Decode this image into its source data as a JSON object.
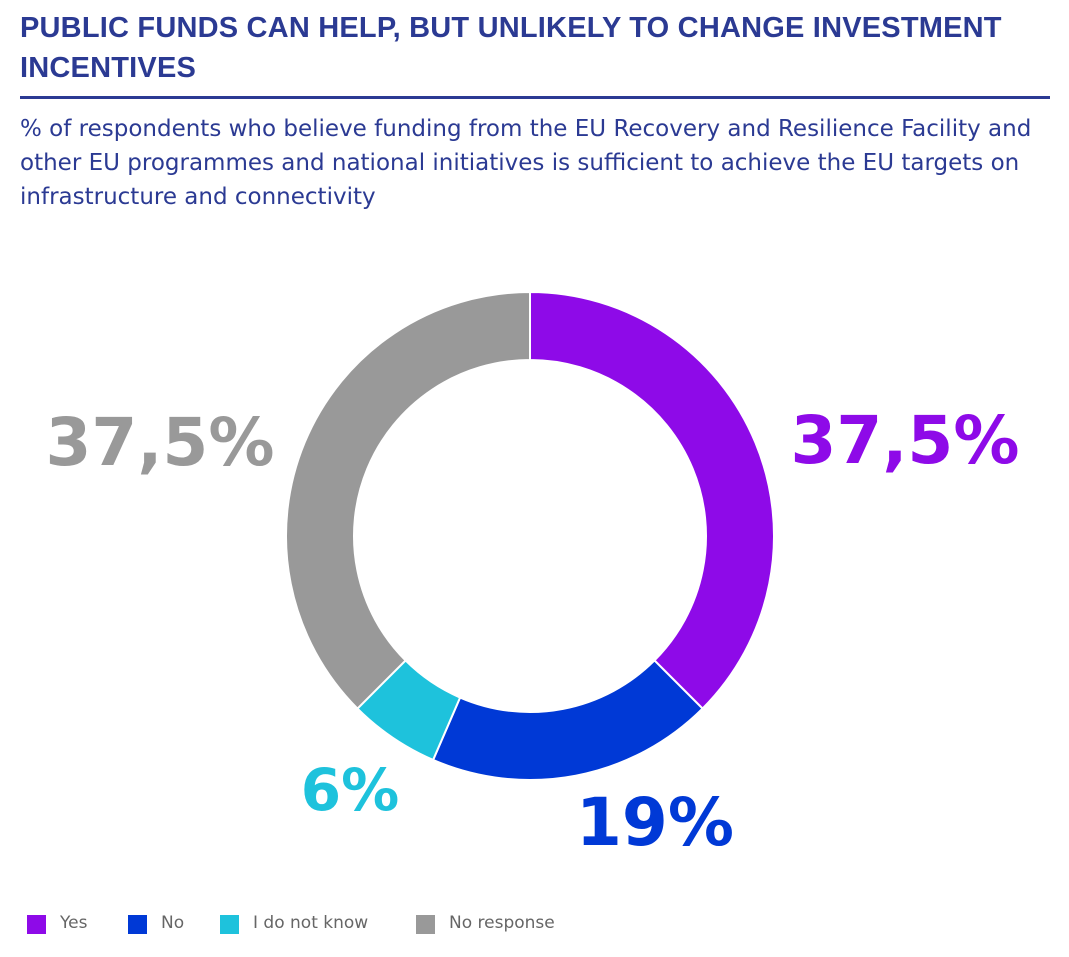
{
  "header": {
    "title": "PUBLIC FUNDS CAN HELP, BUT UNLIKELY TO CHANGE INVESTMENT INCENTIVES",
    "subtitle": "% of respondents who believe funding from the EU Recovery and Resilience Facility and other EU programmes and national initiatives is sufficient to achieve the EU targets on infrastructure and connectivity"
  },
  "colors": {
    "title": "#2b3a93",
    "yes": "#8e0ae8",
    "no": "#0039d6",
    "dont_know": "#1ec2dc",
    "no_response": "#999999"
  },
  "chart_data": {
    "type": "pie",
    "donut": true,
    "categories": [
      "Yes",
      "No",
      "I do not know",
      "No response"
    ],
    "values": [
      37.5,
      19,
      6,
      37.5
    ],
    "data_labels": [
      "37,5%",
      "19%",
      "6%",
      "37,5%"
    ],
    "colors": [
      "#8e0ae8",
      "#0039d6",
      "#1ec2dc",
      "#999999"
    ],
    "legend_placement": "bottom-left"
  }
}
